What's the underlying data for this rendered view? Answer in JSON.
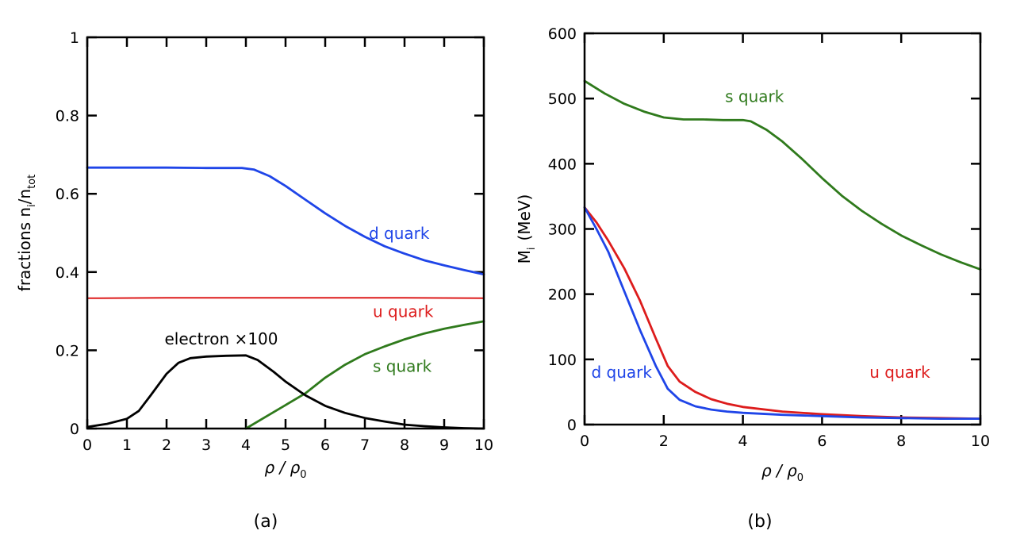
{
  "chart_data": [
    {
      "type": "line",
      "caption": "(a)",
      "xlabel": "ρ / ρ",
      "xlabel_sub": "0",
      "ylabel": "fractions   n",
      "ylabel_sub_i": "i",
      "ylabel_mid": "/n",
      "ylabel_sub_tot": "tot",
      "xlim": [
        0,
        10
      ],
      "ylim": [
        0,
        1
      ],
      "xticks": [
        0,
        1,
        2,
        3,
        4,
        5,
        6,
        7,
        8,
        9,
        10
      ],
      "xtick_labels": [
        "0",
        "1",
        "2",
        "3",
        "4",
        "5",
        "6",
        "7",
        "8",
        "9",
        "10"
      ],
      "yticks": [
        0,
        0.2,
        0.4,
        0.6,
        0.8,
        1
      ],
      "ytick_labels": [
        "0",
        "0.2",
        "0.4",
        "0.6",
        "0.8",
        "1"
      ],
      "series": [
        {
          "name": "d quark",
          "color": "#1f45e8",
          "x": [
            0,
            1,
            2,
            3,
            3.9,
            4.2,
            4.6,
            5,
            5.5,
            6,
            6.5,
            7,
            7.5,
            8,
            8.5,
            9,
            9.5,
            10
          ],
          "y": [
            0.667,
            0.667,
            0.667,
            0.666,
            0.666,
            0.662,
            0.645,
            0.62,
            0.585,
            0.55,
            0.518,
            0.49,
            0.466,
            0.447,
            0.43,
            0.417,
            0.405,
            0.394
          ]
        },
        {
          "name": "u quark",
          "color": "#dd1c1c",
          "x": [
            0,
            2,
            4,
            6,
            8,
            10
          ],
          "y": [
            0.333,
            0.334,
            0.334,
            0.334,
            0.334,
            0.333
          ]
        },
        {
          "name": "s quark",
          "color": "#2f7a1c",
          "x": [
            4,
            4.5,
            5,
            5.5,
            6,
            6.5,
            7,
            7.5,
            8,
            8.5,
            9,
            9.5,
            10
          ],
          "y": [
            0,
            0.03,
            0.06,
            0.09,
            0.13,
            0.163,
            0.19,
            0.21,
            0.228,
            0.243,
            0.255,
            0.265,
            0.274
          ]
        },
        {
          "name": "electron ×100",
          "color": "#000000",
          "x": [
            0,
            0.5,
            1,
            1.3,
            1.6,
            2,
            2.3,
            2.6,
            3,
            3.5,
            4,
            4.3,
            4.7,
            5,
            5.5,
            6,
            6.5,
            7,
            7.5,
            8,
            8.5,
            9,
            9.5,
            10
          ],
          "y": [
            0.004,
            0.012,
            0.025,
            0.045,
            0.085,
            0.14,
            0.168,
            0.18,
            0.184,
            0.186,
            0.187,
            0.175,
            0.145,
            0.12,
            0.085,
            0.058,
            0.04,
            0.027,
            0.018,
            0.01,
            0.006,
            0.003,
            0.001,
            0
          ]
        }
      ],
      "labels": [
        {
          "text": "d quark",
          "color": "#1f45e8",
          "x": 7.1,
          "y": 0.485
        },
        {
          "text": "u quark",
          "color": "#dd1c1c",
          "x": 7.2,
          "y": 0.285
        },
        {
          "text": "s quark",
          "color": "#2f7a1c",
          "x": 7.2,
          "y": 0.145
        },
        {
          "text": "electron  ×100",
          "color": "#000000",
          "x": 1.95,
          "y": 0.215
        }
      ]
    },
    {
      "type": "line",
      "caption": "(b)",
      "xlabel": "ρ / ρ",
      "xlabel_sub": "0",
      "ylabel": "M",
      "ylabel_sub": "i",
      "ylabel_unit": "(MeV)",
      "xlim": [
        0,
        10
      ],
      "ylim": [
        0,
        600
      ],
      "xticks": [
        0,
        2,
        4,
        6,
        8,
        10
      ],
      "xtick_labels": [
        "0",
        "2",
        "4",
        "6",
        "8",
        "10"
      ],
      "yticks": [
        0,
        100,
        200,
        300,
        400,
        500,
        600
      ],
      "ytick_labels": [
        "0",
        "100",
        "200",
        "300",
        "400",
        "500",
        "600"
      ],
      "series": [
        {
          "name": "s quark",
          "color": "#2f7a1c",
          "x": [
            0,
            0.5,
            1,
            1.5,
            2,
            2.5,
            3,
            3.5,
            4,
            4.2,
            4.6,
            5,
            5.5,
            6,
            6.5,
            7,
            7.5,
            8,
            8.5,
            9,
            9.5,
            10
          ],
          "y": [
            527,
            508,
            492,
            480,
            471,
            468,
            468,
            467,
            467,
            465,
            452,
            434,
            407,
            378,
            351,
            328,
            308,
            290,
            275,
            261,
            249,
            238
          ]
        },
        {
          "name": "u quark",
          "color": "#dd1c1c",
          "x": [
            0,
            0.3,
            0.6,
            1,
            1.4,
            1.8,
            2.1,
            2.4,
            2.8,
            3.2,
            3.6,
            4,
            5,
            6,
            7,
            8,
            9,
            10
          ],
          "y": [
            333,
            310,
            282,
            240,
            190,
            132,
            90,
            66,
            50,
            39,
            32,
            27,
            20,
            16,
            13,
            11,
            10,
            9
          ]
        },
        {
          "name": "d quark",
          "color": "#1f45e8",
          "x": [
            0,
            0.3,
            0.6,
            1,
            1.4,
            1.8,
            2.1,
            2.4,
            2.8,
            3.2,
            3.6,
            4,
            5,
            6,
            7,
            8,
            9,
            10
          ],
          "y": [
            333,
            300,
            265,
            205,
            145,
            90,
            55,
            38,
            28,
            23,
            20,
            18,
            15,
            13,
            11,
            10,
            9,
            9
          ]
        }
      ],
      "labels": [
        {
          "text": "s quark",
          "color": "#2f7a1c",
          "x": 3.55,
          "y": 495
        },
        {
          "text": "u quark",
          "color": "#dd1c1c",
          "x": 7.2,
          "y": 72
        },
        {
          "text": "d quark",
          "color": "#1f45e8",
          "x": 0.17,
          "y": 72
        }
      ]
    }
  ]
}
